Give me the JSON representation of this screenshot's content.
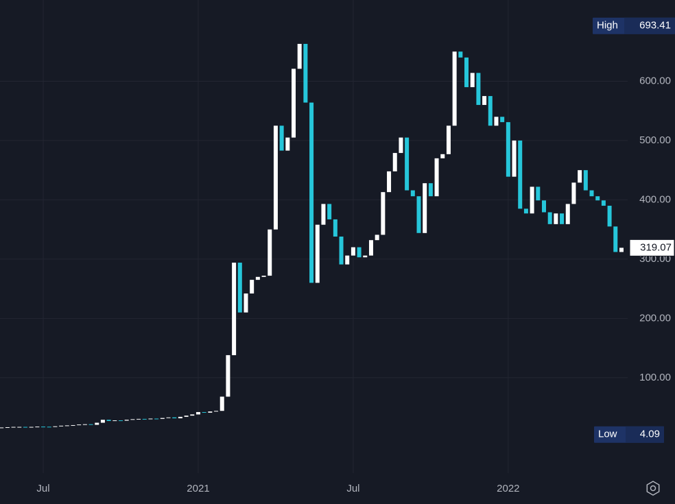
{
  "chart_data": {
    "type": "candlestick",
    "categories": [
      null,
      null,
      null,
      null,
      null,
      null,
      null,
      "Jul",
      null,
      null,
      null,
      null,
      null,
      null,
      null,
      null,
      null,
      null,
      null,
      null,
      null,
      null,
      null,
      null,
      null,
      null,
      null,
      null,
      null,
      null,
      null,
      null,
      null,
      "2021",
      null,
      null,
      null,
      null,
      null,
      null,
      null,
      null,
      null,
      null,
      null,
      null,
      null,
      null,
      null,
      null,
      null,
      null,
      null,
      null,
      null,
      null,
      null,
      null,
      null,
      "Jul",
      null,
      null,
      null,
      null,
      null,
      null,
      null,
      null,
      null,
      null,
      null,
      null,
      null,
      null,
      null,
      null,
      null,
      null,
      null,
      null,
      null,
      null,
      null,
      null,
      null,
      "2022",
      null,
      null,
      null,
      null,
      null,
      null,
      null,
      null,
      null,
      null,
      null,
      null,
      null,
      null,
      null,
      null,
      null,
      null,
      null
    ],
    "open": [
      15.5,
      16,
      16.5,
      17,
      17,
      16.8,
      17,
      17.5,
      17.3,
      17,
      18,
      19,
      19.5,
      20,
      21,
      21.5,
      20.5,
      24,
      29,
      27,
      28,
      27.5,
      29,
      30,
      30.5,
      30,
      31,
      30.5,
      32,
      33,
      31.5,
      34,
      36,
      38,
      42,
      41,
      43,
      44,
      68,
      138,
      294,
      210,
      242,
      265,
      270,
      272,
      350,
      525,
      483,
      505,
      621,
      663,
      564,
      260,
      358,
      393,
      367,
      338,
      291,
      306,
      320,
      303,
      306,
      332,
      341,
      413,
      448,
      479,
      505,
      416,
      406,
      344,
      428,
      406,
      470,
      477,
      525,
      650,
      640,
      590,
      614,
      560,
      575,
      525,
      540,
      531,
      439,
      500,
      385,
      377,
      422,
      399,
      379,
      359,
      377,
      359,
      393,
      429,
      450,
      416,
      406,
      399,
      390,
      355,
      312
    ],
    "high": {
      "label": "High",
      "value": 693.41
    },
    "low": {
      "label": "Low",
      "value": 4.09
    },
    "close": [
      16,
      16.5,
      17,
      17,
      16.8,
      17,
      17.5,
      17.3,
      17,
      18,
      19,
      19.5,
      20,
      21,
      21.5,
      20.5,
      24,
      29,
      27,
      28,
      27.5,
      29,
      30,
      30.5,
      30,
      31,
      30.5,
      32,
      33,
      31.5,
      34,
      36,
      38,
      42,
      41,
      43,
      44,
      68,
      138,
      294,
      210,
      242,
      265,
      270,
      272,
      350,
      525,
      483,
      505,
      621,
      663,
      564,
      260,
      358,
      393,
      367,
      338,
      291,
      306,
      320,
      303,
      306,
      332,
      341,
      413,
      448,
      479,
      505,
      416,
      406,
      344,
      428,
      406,
      470,
      477,
      525,
      650,
      640,
      590,
      614,
      560,
      575,
      525,
      540,
      531,
      439,
      500,
      385,
      377,
      422,
      399,
      379,
      359,
      377,
      359,
      393,
      429,
      450,
      416,
      406,
      399,
      390,
      355,
      312,
      319.07
    ],
    "up_color": "#ffffff",
    "down_color": "#26c6da",
    "ylim": [
      -61,
      737
    ],
    "yticks": [
      {
        "value": 100,
        "label": "100.00"
      },
      {
        "value": 200,
        "label": "200.00"
      },
      {
        "value": 300,
        "label": "300.00"
      },
      {
        "value": 400,
        "label": "400.00"
      },
      {
        "value": 500,
        "label": "500.00"
      },
      {
        "value": 600,
        "label": "600.00"
      }
    ],
    "grid": true
  }
}
